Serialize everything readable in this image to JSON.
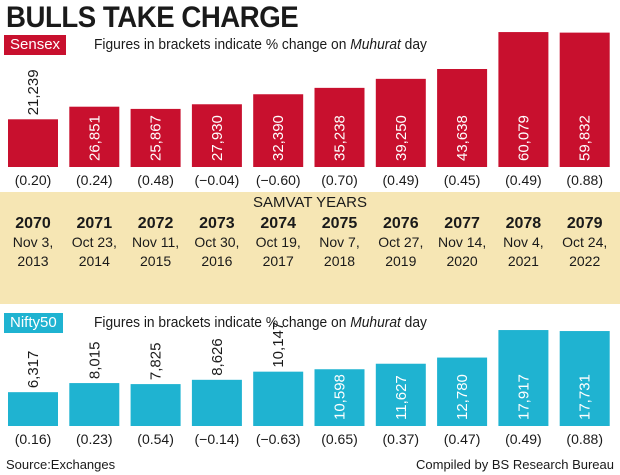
{
  "title": "BULLS TAKE CHARGE",
  "colors": {
    "sensex": "#c8102e",
    "nifty": "#1fb3d1",
    "band": "#f6e6b4"
  },
  "band_title": "SAMVAT YEARS",
  "years": [
    {
      "year": "2070",
      "date": "Nov 3,",
      "yyyy": "2013"
    },
    {
      "year": "2071",
      "date": "Oct 23,",
      "yyyy": "2014"
    },
    {
      "year": "2072",
      "date": "Nov 11,",
      "yyyy": "2015"
    },
    {
      "year": "2073",
      "date": "Oct 30,",
      "yyyy": "2016"
    },
    {
      "year": "2074",
      "date": "Oct 19,",
      "yyyy": "2017"
    },
    {
      "year": "2075",
      "date": "Nov 7,",
      "yyyy": "2018"
    },
    {
      "year": "2076",
      "date": "Oct 27,",
      "yyyy": "2019"
    },
    {
      "year": "2077",
      "date": "Nov 14,",
      "yyyy": "2020"
    },
    {
      "year": "2078",
      "date": "Nov 4,",
      "yyyy": "2021"
    },
    {
      "year": "2079",
      "date": "Oct 24,",
      "yyyy": "2022"
    }
  ],
  "chart_data": [
    {
      "type": "bar",
      "label": "Sensex",
      "note_prefix": "Figures in brackets indicate % change  on",
      "note_italic": "Muhurat",
      "note_suffix": "day",
      "categories": [
        "2070",
        "2071",
        "2072",
        "2073",
        "2074",
        "2075",
        "2076",
        "2077",
        "2078",
        "2079"
      ],
      "values": [
        21239,
        26851,
        25867,
        27930,
        32390,
        35238,
        39250,
        43638,
        60079,
        59832
      ],
      "value_labels": [
        "21,239",
        "26,851",
        "25,867",
        "27,930",
        "32,390",
        "35,238",
        "39,250",
        "43,638",
        "60,079",
        "59,832"
      ],
      "pct_labels": [
        "(0.20)",
        "(0.24)",
        "(0.48)",
        "(−0.04)",
        "(−0.60)",
        "(0.70)",
        "(0.49)",
        "(0.45)",
        "(0.49)",
        "(0.88)"
      ],
      "ylim": [
        0,
        61000
      ]
    },
    {
      "type": "bar",
      "label": "Nifty50",
      "note_prefix": "Figures in brackets indicate % change  on",
      "note_italic": "Muhurat",
      "note_suffix": "day",
      "categories": [
        "2070",
        "2071",
        "2072",
        "2073",
        "2074",
        "2075",
        "2076",
        "2077",
        "2078",
        "2079"
      ],
      "values": [
        6317,
        8015,
        7825,
        8626,
        10147,
        10598,
        11627,
        12780,
        17917,
        17731
      ],
      "value_labels": [
        "6,317",
        "8,015",
        "7,825",
        "8,626",
        "10,147",
        "10,598",
        "11,627",
        "12,780",
        "17,917",
        "17,731"
      ],
      "pct_labels": [
        "(0.16)",
        "(0.23)",
        "(0.54)",
        "(−0.14)",
        "(−0.63)",
        "(0.65)",
        "(0.37)",
        "(0.47)",
        "(0.49)",
        "(0.88)"
      ],
      "ylim": [
        0,
        18300
      ]
    }
  ],
  "footer": {
    "source": "Source:Exchanges",
    "credit": "Compiled by BS Research Bureau"
  }
}
